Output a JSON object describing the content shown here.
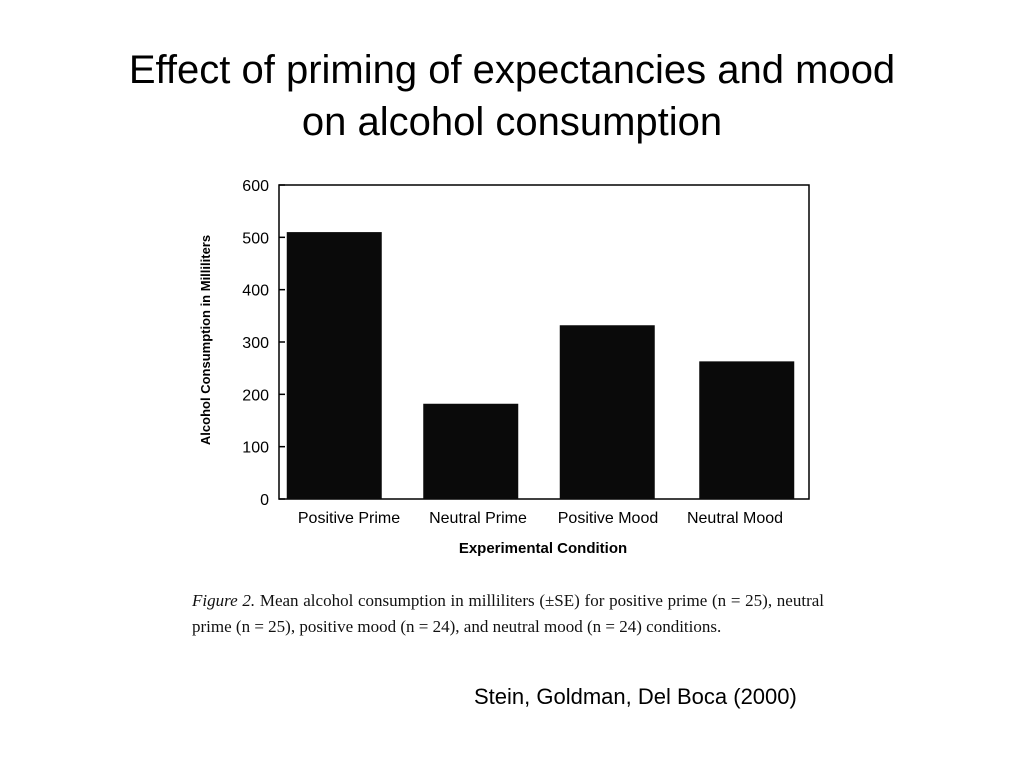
{
  "slide": {
    "title_line1": "Effect of priming of expectancies and mood",
    "title_line2": "on alcohol consumption",
    "citation": "Stein, Goldman, Del Boca (2000)"
  },
  "figure": {
    "caption_label": "Figure 2.",
    "caption_text": "Mean alcohol consumption in milliliters (±SE) for positive prime (n = 25), neutral prime (n = 25), positive mood (n = 24), and neutral mood (n = 24) conditions."
  },
  "chart_data": {
    "type": "bar",
    "title": "",
    "xlabel": "Experimental Condition",
    "ylabel": "Alcohol Consumption in Milliliters",
    "categories": [
      "Positive Prime",
      "Neutral Prime",
      "Positive Mood",
      "Neutral Mood"
    ],
    "values": [
      510,
      182,
      332,
      263
    ],
    "ylim": [
      0,
      600
    ],
    "yticks": [
      0,
      100,
      200,
      300,
      400,
      500,
      600
    ],
    "bar_color": "#0a0a0a",
    "grid": false,
    "legend": "none"
  }
}
